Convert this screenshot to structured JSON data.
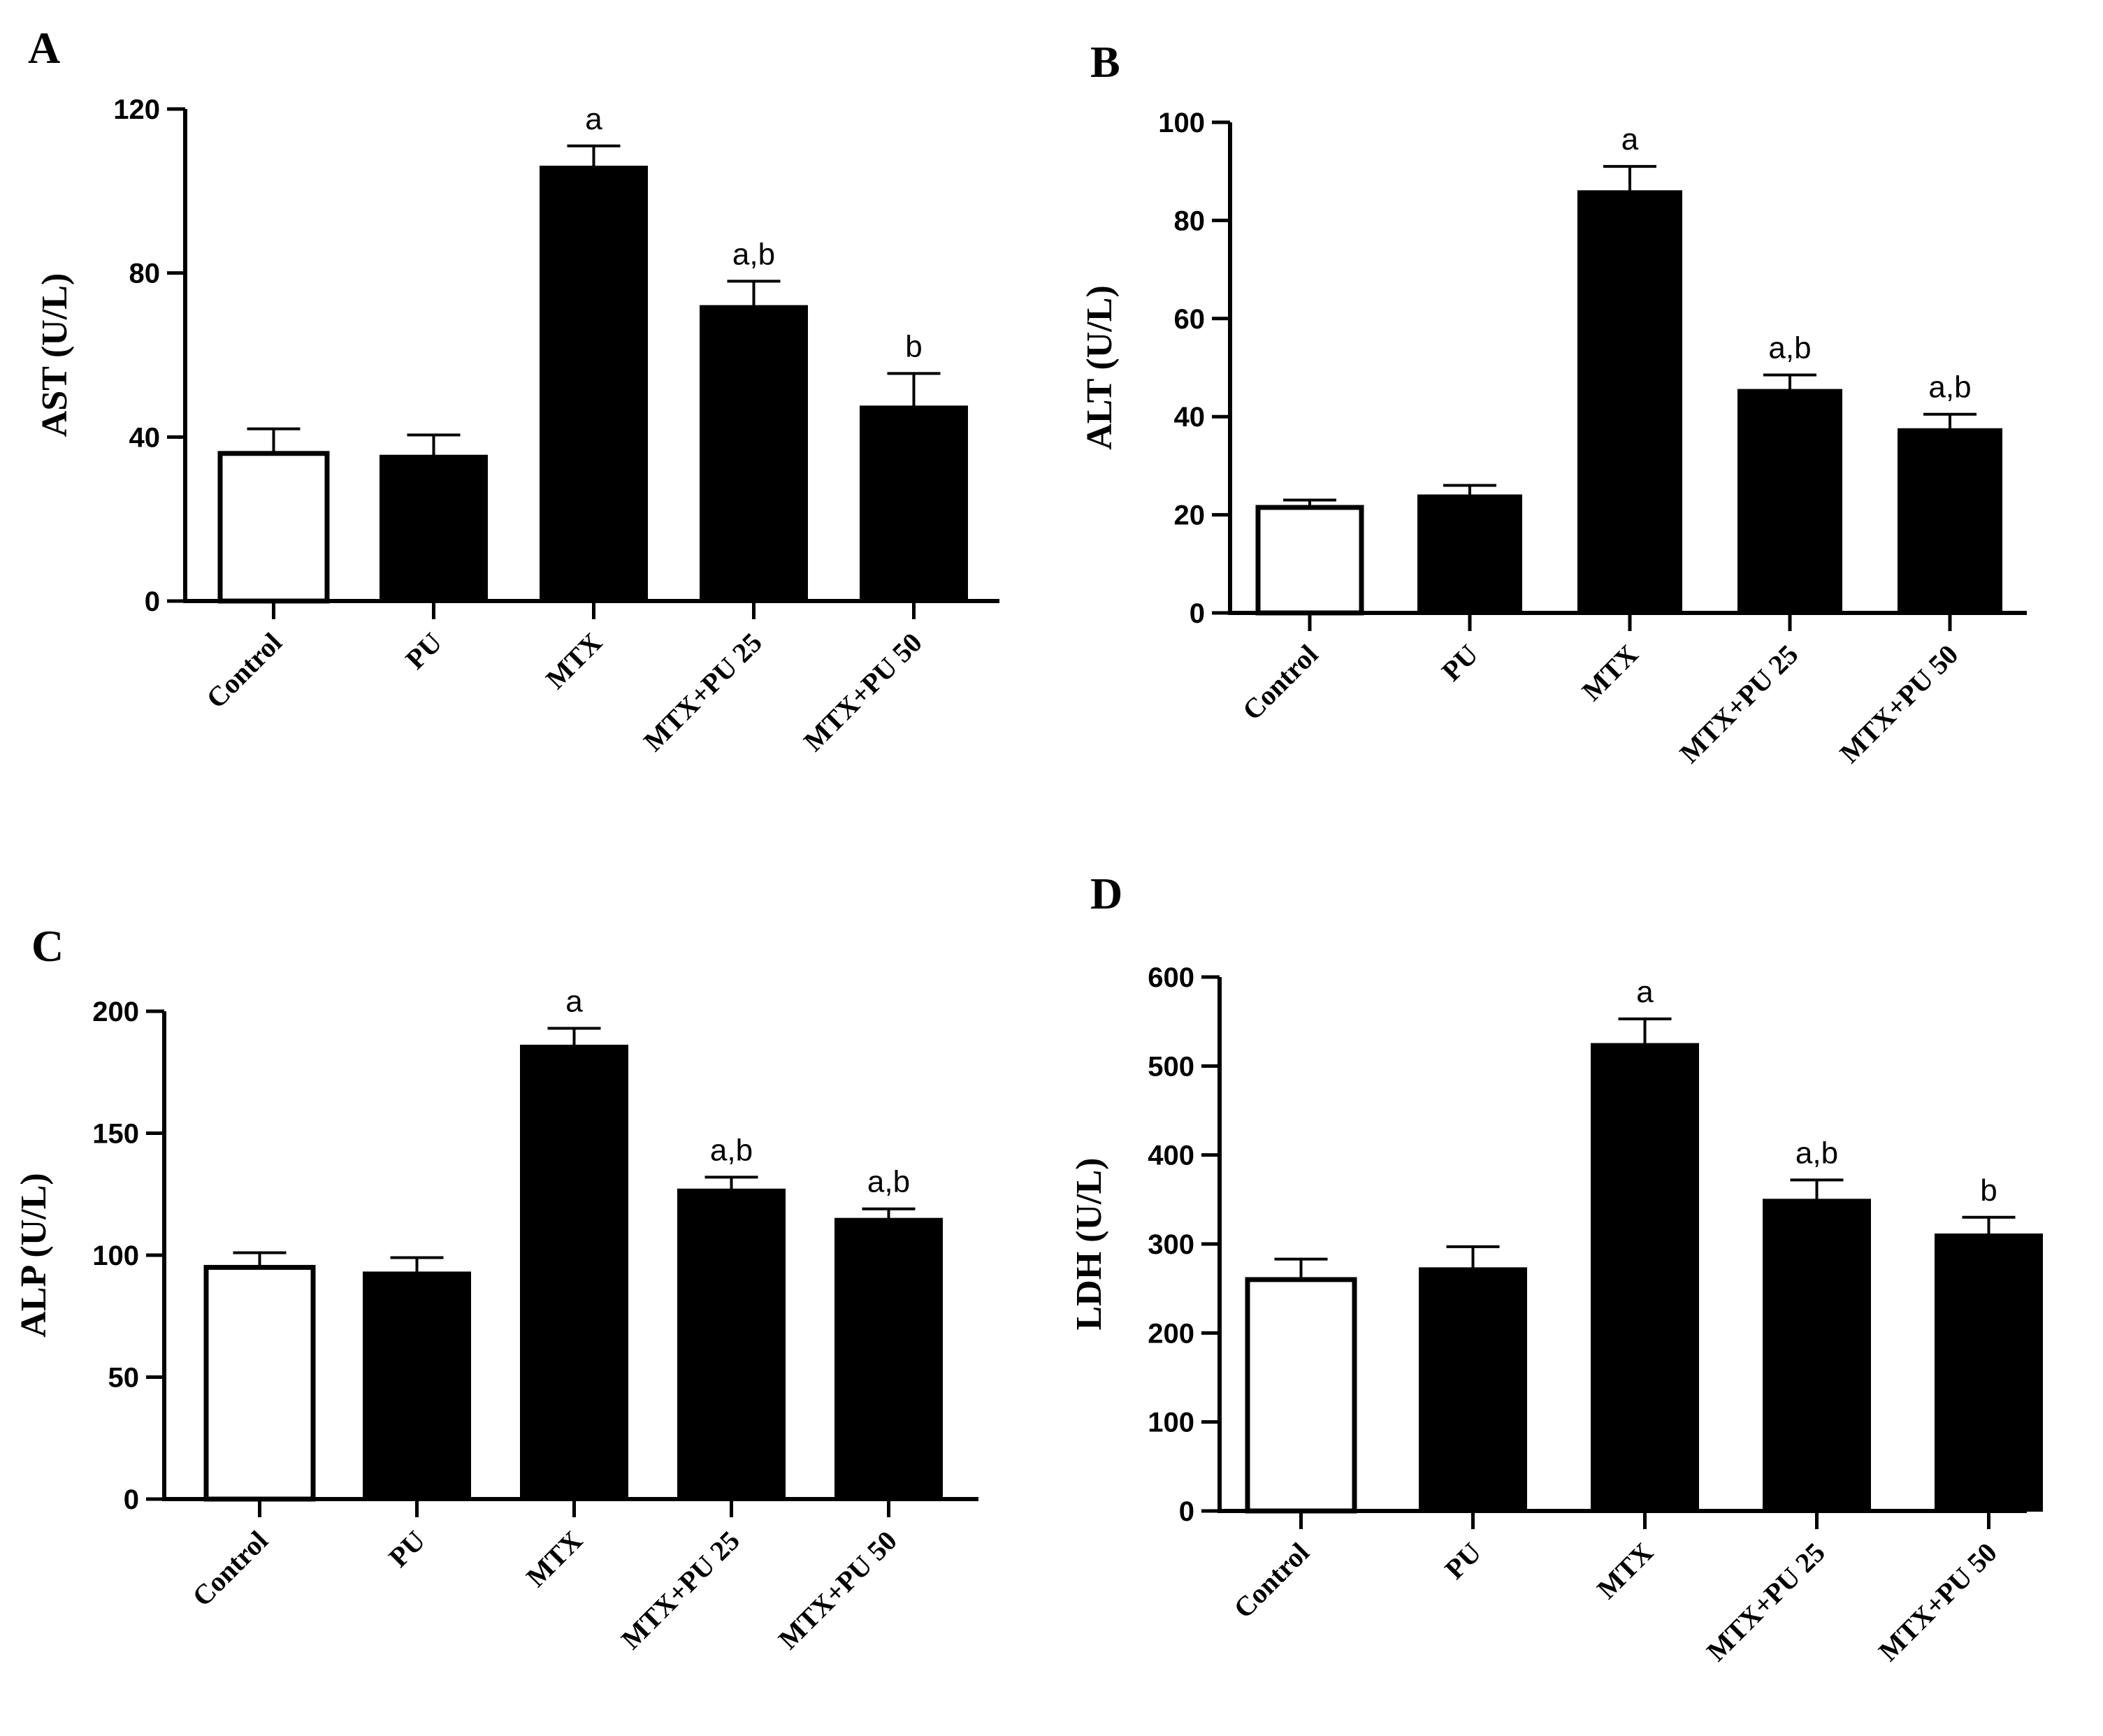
{
  "chart_data": [
    {
      "panel": "A",
      "type": "bar",
      "ylabel": "AST (U/L)",
      "ylim": [
        0,
        120
      ],
      "yticks": [
        0,
        40,
        80,
        120
      ],
      "categories": [
        "Control",
        "PU",
        "MTX",
        "MTX+PU 25",
        "MTX+PU 50"
      ],
      "values": [
        36,
        35.5,
        106,
        72,
        47.5
      ],
      "errors": [
        6,
        5,
        5,
        6,
        8
      ],
      "labels": [
        "",
        "",
        "a",
        "a,b",
        "b"
      ],
      "fills": [
        "#ffffff",
        "#000000",
        "#000000",
        "#000000",
        "#000000"
      ]
    },
    {
      "panel": "B",
      "type": "bar",
      "ylabel": "ALT (U/L)",
      "ylim": [
        0,
        100
      ],
      "yticks": [
        0,
        20,
        40,
        60,
        80,
        100
      ],
      "categories": [
        "Control",
        "PU",
        "MTX",
        "MTX+PU 25",
        "MTX+PU 50"
      ],
      "values": [
        21.5,
        24,
        86,
        45.5,
        37.5
      ],
      "errors": [
        1.5,
        2,
        5,
        3,
        3
      ],
      "labels": [
        "",
        "",
        "a",
        "a,b",
        "a,b"
      ],
      "fills": [
        "#ffffff",
        "#000000",
        "#000000",
        "#000000",
        "#000000"
      ]
    },
    {
      "panel": "C",
      "type": "bar",
      "ylabel": "ALP (U/L)",
      "ylim": [
        0,
        200
      ],
      "yticks": [
        0,
        50,
        100,
        150,
        200
      ],
      "categories": [
        "Control",
        "PU",
        "MTX",
        "MTX+PU 25",
        "MTX+PU 50"
      ],
      "values": [
        95,
        93,
        186,
        127,
        115
      ],
      "errors": [
        6,
        6,
        7,
        5,
        4
      ],
      "labels": [
        "",
        "",
        "a",
        "a,b",
        "a,b"
      ],
      "fills": [
        "#ffffff",
        "#000000",
        "#000000",
        "#000000",
        "#000000"
      ]
    },
    {
      "panel": "D",
      "type": "bar",
      "ylabel": "LDH (U/L)",
      "ylim": [
        0,
        600
      ],
      "yticks": [
        0,
        100,
        200,
        300,
        400,
        500,
        600
      ],
      "categories": [
        "Control",
        "PU",
        "MTX",
        "MTX+PU 25",
        "MTX+PU 50"
      ],
      "values": [
        260,
        273,
        525,
        350,
        311
      ],
      "errors": [
        23,
        24,
        28,
        22,
        19
      ],
      "labels": [
        "",
        "",
        "a",
        "a,b",
        "b"
      ],
      "fills": [
        "#ffffff",
        "#000000",
        "#000000",
        "#000000",
        "#000000"
      ]
    }
  ]
}
